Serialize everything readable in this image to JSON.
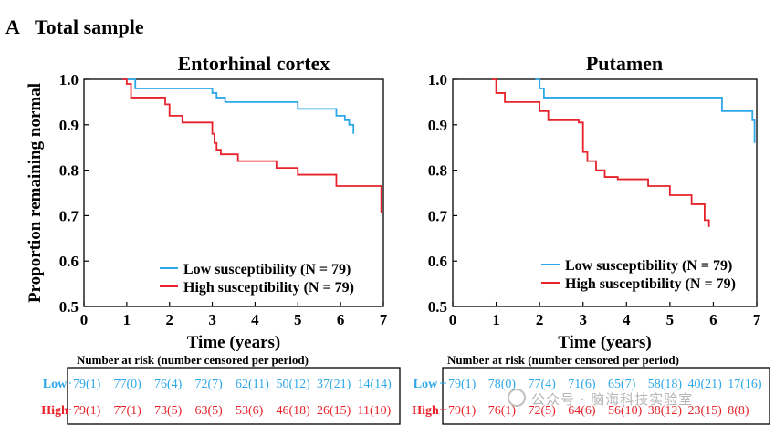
{
  "panel_label": "A",
  "panel_title": "Total sample",
  "risk_table_title": "Number at risk (number censored per period)",
  "watermark": "公众号 · 脑海科技实验室",
  "colors": {
    "low": "#2ea7e8",
    "high": "#e8222a",
    "axis": "#000000"
  },
  "chart_data": [
    {
      "type": "line",
      "title": "Entorhinal cortex",
      "xlabel": "Time (years)",
      "ylabel": "Proportion remaining normal",
      "xlim": [
        0,
        7
      ],
      "ylim": [
        0.5,
        1.0
      ],
      "xticks": [
        "0",
        "1",
        "2",
        "3",
        "4",
        "5",
        "6",
        "7"
      ],
      "yticks": [
        "0.5",
        "0.6",
        "0.7",
        "0.8",
        "0.9",
        "1.0"
      ],
      "grid": false,
      "legend_position": "bottom-right",
      "series": [
        {
          "name": "Low susceptibility (N = 79)",
          "color_key": "low",
          "x": [
            0.9,
            1.2,
            2.8,
            3.0,
            3.1,
            3.3,
            4.3,
            4.5,
            5.0,
            5.9,
            6.1,
            6.2,
            6.3,
            6.3
          ],
          "y": [
            1.0,
            0.98,
            0.98,
            0.97,
            0.96,
            0.95,
            0.95,
            0.95,
            0.935,
            0.92,
            0.91,
            0.9,
            0.895,
            0.88
          ]
        },
        {
          "name": "High susceptibility (N = 79)",
          "color_key": "high",
          "x": [
            0.9,
            1.0,
            1.1,
            1.9,
            2.0,
            2.3,
            3.0,
            3.05,
            3.1,
            3.2,
            3.6,
            4.5,
            5.0,
            5.9,
            6.9,
            6.95
          ],
          "y": [
            1.0,
            0.99,
            0.96,
            0.945,
            0.92,
            0.905,
            0.88,
            0.86,
            0.845,
            0.835,
            0.82,
            0.805,
            0.79,
            0.765,
            0.765,
            0.705
          ]
        }
      ],
      "risk_table": {
        "rows": [
          {
            "label": "Low",
            "color_key": "low",
            "cells": [
              "79(1)",
              "77(0)",
              "76(4)",
              "72(7)",
              "62(11)",
              "50(12)",
              "37(21)",
              "14(14)"
            ]
          },
          {
            "label": "High",
            "color_key": "high",
            "cells": [
              "79(1)",
              "77(1)",
              "73(5)",
              "63(5)",
              "53(6)",
              "46(18)",
              "26(15)",
              "11(10)"
            ]
          }
        ]
      }
    },
    {
      "type": "line",
      "title": "Putamen",
      "xlabel": "Time (years)",
      "ylabel": "",
      "xlim": [
        0,
        7
      ],
      "ylim": [
        0.5,
        1.0
      ],
      "xticks": [
        "0",
        "1",
        "2",
        "3",
        "4",
        "5",
        "6",
        "7"
      ],
      "yticks": [
        "0.5",
        "0.6",
        "0.7",
        "0.8",
        "0.9",
        "1.0"
      ],
      "grid": false,
      "legend_position": "bottom-right",
      "series": [
        {
          "name": "Low susceptibility (N = 79)",
          "color_key": "low",
          "x": [
            1.9,
            2.0,
            2.1,
            6.0,
            6.2,
            6.9,
            6.95
          ],
          "y": [
            1.0,
            0.98,
            0.96,
            0.96,
            0.93,
            0.91,
            0.86
          ]
        },
        {
          "name": "High susceptibility (N = 79)",
          "color_key": "high",
          "x": [
            0.9,
            1.0,
            1.2,
            2.0,
            2.2,
            2.9,
            3.0,
            3.1,
            3.3,
            3.5,
            3.8,
            4.5,
            5.0,
            5.5,
            5.8,
            5.9
          ],
          "y": [
            1.0,
            0.97,
            0.95,
            0.93,
            0.91,
            0.905,
            0.84,
            0.82,
            0.8,
            0.785,
            0.78,
            0.765,
            0.745,
            0.725,
            0.69,
            0.675
          ]
        }
      ],
      "risk_table": {
        "rows": [
          {
            "label": "Low",
            "color_key": "low",
            "cells": [
              "79(1)",
              "78(0)",
              "77(4)",
              "71(6)",
              "65(7)",
              "58(18)",
              "40(21)",
              "17(16)"
            ]
          },
          {
            "label": "High",
            "color_key": "high",
            "cells": [
              "79(1)",
              "76(1)",
              "72(5)",
              "64(6)",
              "56(10)",
              "38(12)",
              "23(15)",
              "8(8)"
            ]
          }
        ]
      }
    }
  ]
}
